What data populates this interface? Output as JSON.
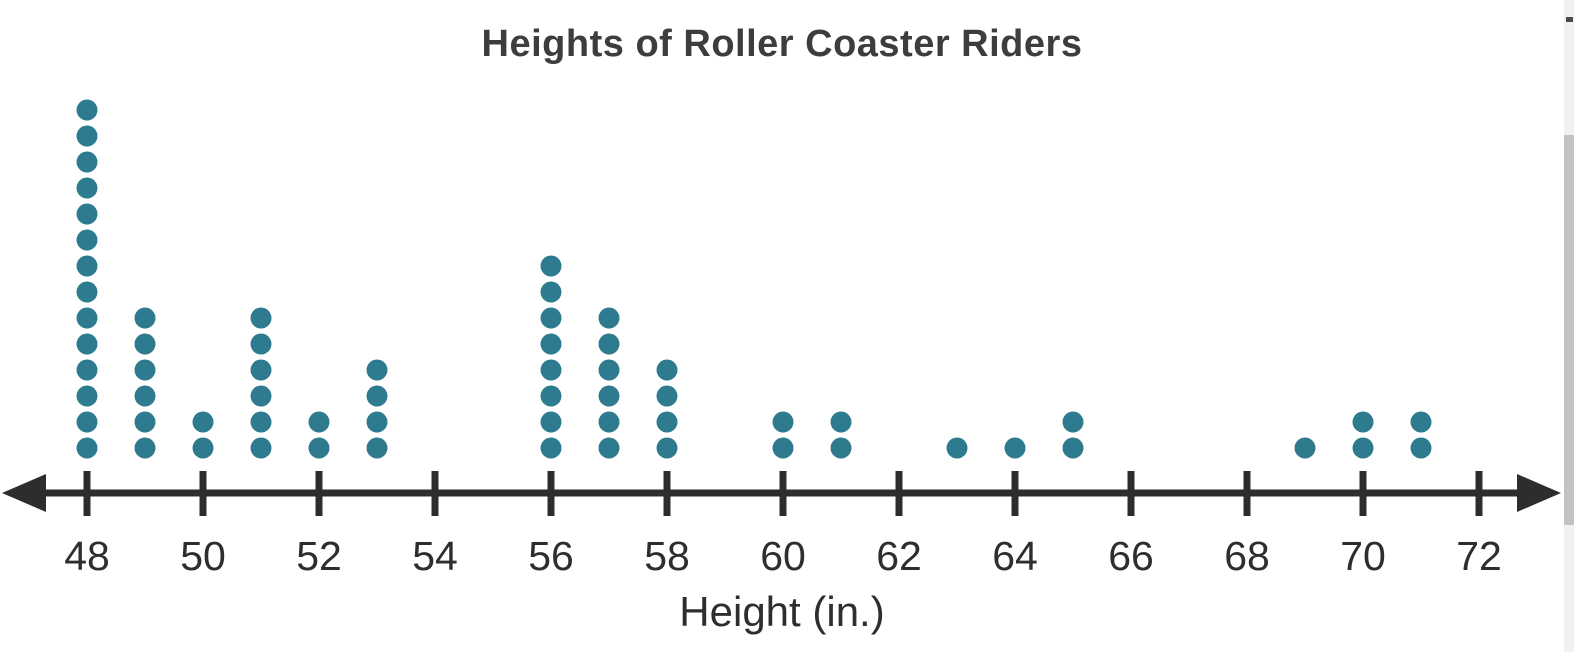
{
  "chart_data": {
    "type": "dot_plot",
    "title": "Heights of Roller Coaster Riders",
    "xlabel": "Height (in.)",
    "ylabel": "",
    "x_axis": {
      "min": 48,
      "max": 72,
      "tick_step": 2,
      "ticks": [
        48,
        50,
        52,
        54,
        56,
        58,
        60,
        62,
        64,
        66,
        68,
        70,
        72
      ],
      "arrows_both_ends": true
    },
    "dot_counts": [
      {
        "x": 48,
        "count": 14
      },
      {
        "x": 49,
        "count": 6
      },
      {
        "x": 50,
        "count": 2
      },
      {
        "x": 51,
        "count": 6
      },
      {
        "x": 52,
        "count": 2
      },
      {
        "x": 53,
        "count": 4
      },
      {
        "x": 54,
        "count": 0
      },
      {
        "x": 55,
        "count": 0
      },
      {
        "x": 56,
        "count": 8
      },
      {
        "x": 57,
        "count": 6
      },
      {
        "x": 58,
        "count": 4
      },
      {
        "x": 59,
        "count": 0
      },
      {
        "x": 60,
        "count": 2
      },
      {
        "x": 61,
        "count": 2
      },
      {
        "x": 62,
        "count": 0
      },
      {
        "x": 63,
        "count": 1
      },
      {
        "x": 64,
        "count": 1
      },
      {
        "x": 65,
        "count": 2
      },
      {
        "x": 66,
        "count": 0
      },
      {
        "x": 67,
        "count": 0
      },
      {
        "x": 68,
        "count": 0
      },
      {
        "x": 69,
        "count": 1
      },
      {
        "x": 70,
        "count": 2
      },
      {
        "x": 71,
        "count": 2
      },
      {
        "x": 72,
        "count": 0
      }
    ],
    "total_dots": 65,
    "grid": false,
    "legend": "none",
    "colors": {
      "dot": "#2e7a8e",
      "axis": "#2d2d2d",
      "tick_label": "#2e2e2e",
      "title": "#3d3d3d",
      "axis_label": "#2e2e2e"
    }
  },
  "scrollbar": {
    "track_color": "#f0f1f1",
    "thumb_color": "#c2c2c5",
    "arrow_color": "#4a4a4a"
  }
}
